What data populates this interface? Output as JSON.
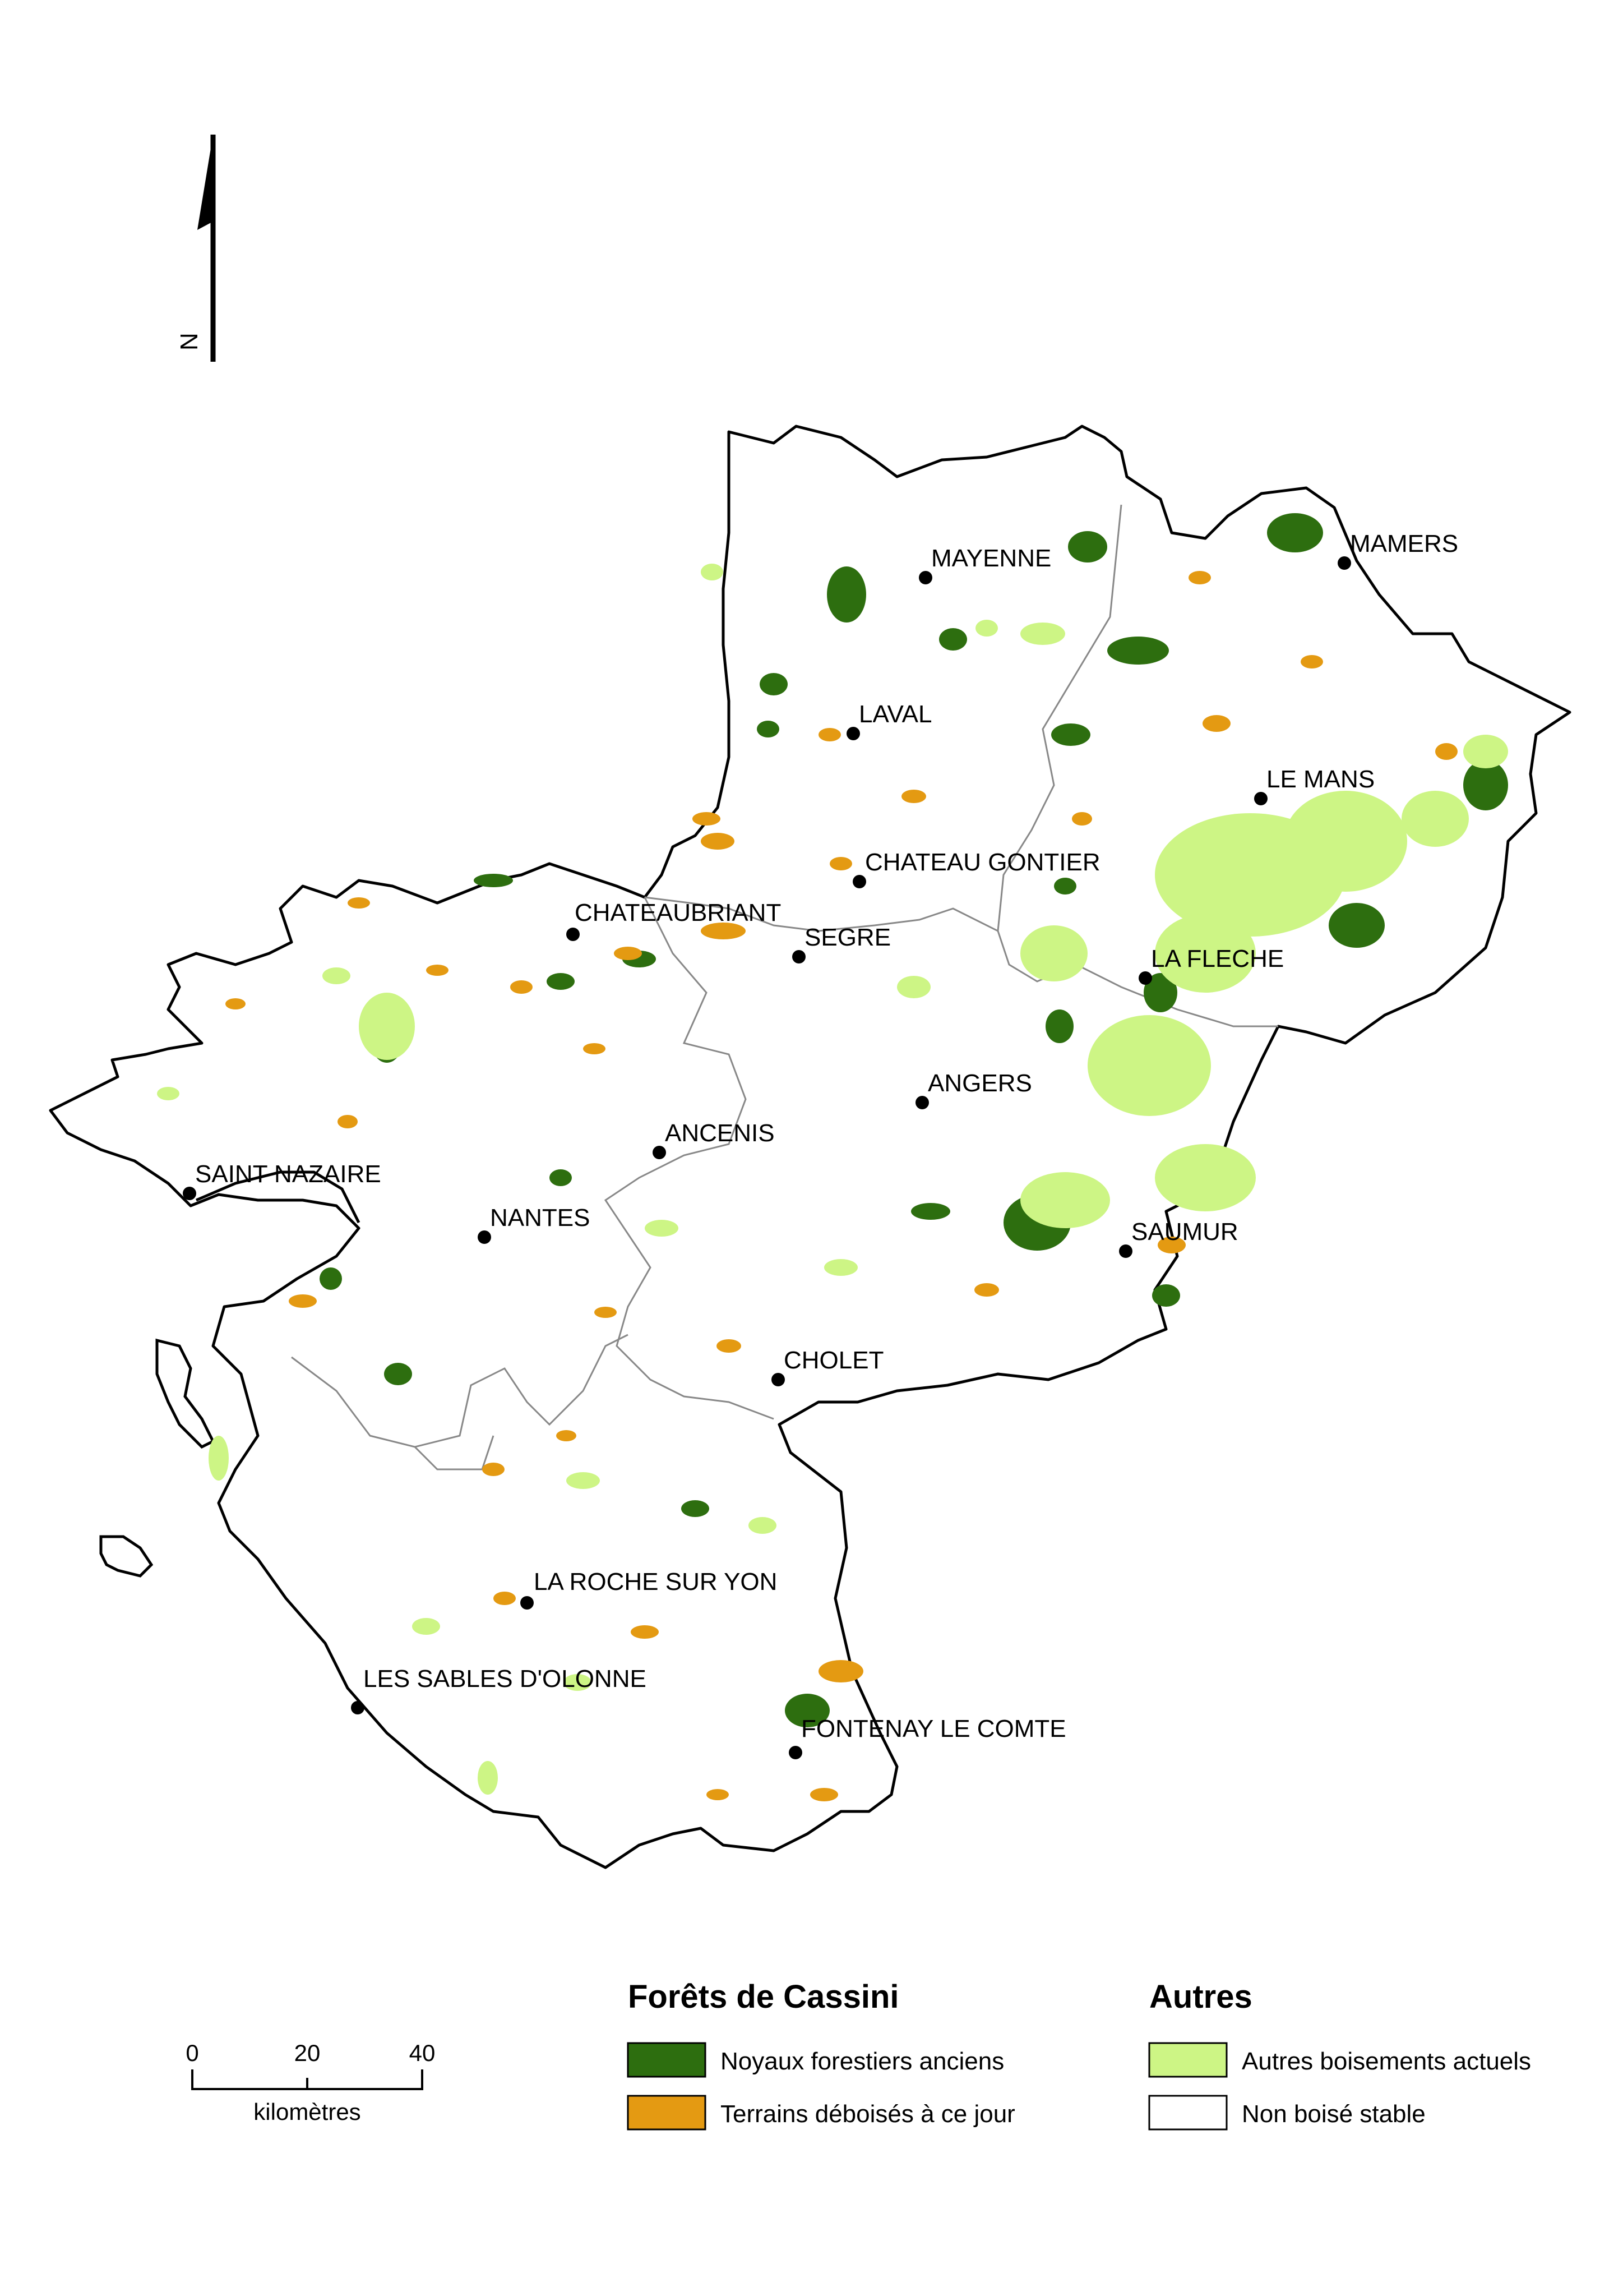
{
  "north_arrow": {
    "label": "N"
  },
  "cities": [
    {
      "name": "MAYENNE"
    },
    {
      "name": "MAMERS"
    },
    {
      "name": "LAVAL"
    },
    {
      "name": "LE MANS"
    },
    {
      "name": "CHATEAU GONTIER"
    },
    {
      "name": "CHATEAUBRIANT"
    },
    {
      "name": "SEGRE"
    },
    {
      "name": "LA FLECHE"
    },
    {
      "name": "ANGERS"
    },
    {
      "name": "ANCENIS"
    },
    {
      "name": "SAINT NAZAIRE"
    },
    {
      "name": "NANTES"
    },
    {
      "name": "SAUMUR"
    },
    {
      "name": "CHOLET"
    },
    {
      "name": "LA ROCHE SUR YON"
    },
    {
      "name": "LES SABLES D'OLONNE"
    },
    {
      "name": "FONTENAY LE COMTE"
    }
  ],
  "legend": {
    "group1_title": "Forêts de Cassini",
    "group1_items": [
      {
        "label": "Noyaux forestiers anciens",
        "color": "#2d6e0f"
      },
      {
        "label": "Terrains déboisés à ce jour",
        "color": "#e49a12"
      }
    ],
    "group2_title": "Autres",
    "group2_items": [
      {
        "label": "Autres boisements actuels",
        "color": "#cdf585"
      },
      {
        "label": "Non boisé stable",
        "color": "#ffffff"
      }
    ]
  },
  "scale_bar": {
    "ticks": [
      "0",
      "20",
      "40"
    ],
    "unit": "kilomètres"
  }
}
